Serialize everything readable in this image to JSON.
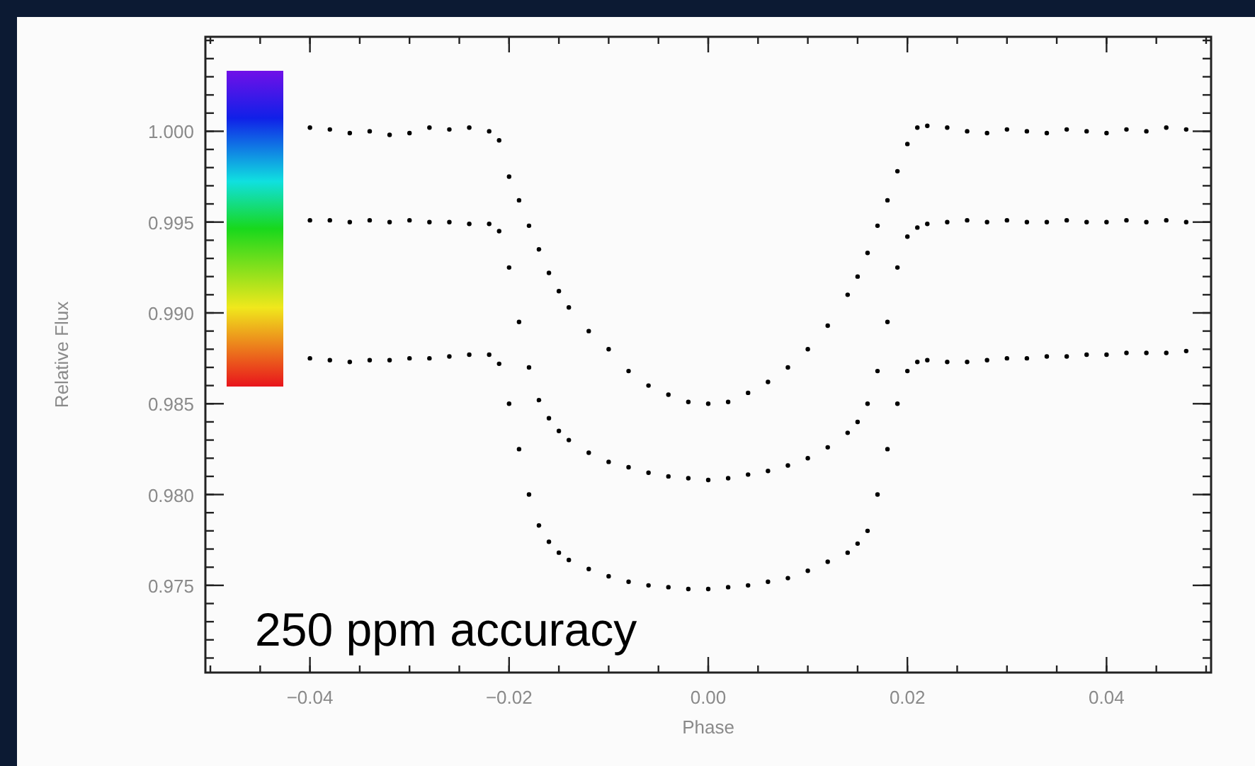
{
  "chart_data": {
    "type": "scatter",
    "xlabel": "Phase",
    "ylabel": "Relative Flux",
    "marker": "circle",
    "grid": false,
    "annotations": [
      "250 ppm accuracy"
    ],
    "xlim": [
      -0.0505,
      0.0505
    ],
    "ylim": [
      0.9702,
      1.0052
    ],
    "xticks": [
      {
        "value": -0.04,
        "label": "−0.04"
      },
      {
        "value": -0.02,
        "label": "−0.02"
      },
      {
        "value": 0,
        "label": "0.00"
      },
      {
        "value": 0.02,
        "label": "0.02"
      },
      {
        "value": 0.04,
        "label": "0.04"
      }
    ],
    "yticks": [
      {
        "value": 0.975,
        "label": "0.975"
      },
      {
        "value": 0.98,
        "label": "0.980"
      },
      {
        "value": 0.985,
        "label": "0.985"
      },
      {
        "value": 0.99,
        "label": "0.990"
      },
      {
        "value": 0.995,
        "label": "0.995"
      },
      {
        "value": 1,
        "label": "1.000"
      }
    ],
    "x": [
      -0.04,
      -0.038,
      -0.036,
      -0.034,
      -0.032,
      -0.03,
      -0.028,
      -0.026,
      -0.024,
      -0.022,
      -0.021,
      -0.02,
      -0.019,
      -0.018,
      -0.017,
      -0.016,
      -0.015,
      -0.014,
      -0.012,
      -0.01,
      -0.008,
      -0.006,
      -0.004,
      -0.002,
      0,
      0.002,
      0.004,
      0.006,
      0.008,
      0.01,
      0.012,
      0.014,
      0.015,
      0.016,
      0.017,
      0.018,
      0.019,
      0.02,
      0.021,
      0.022,
      0.024,
      0.026,
      0.028,
      0.03,
      0.032,
      0.034,
      0.036,
      0.038,
      0.04,
      0.042,
      0.044,
      0.046,
      0.048
    ],
    "series": [
      {
        "color": "#000000",
        "values": [
          1.0002,
          1.0001,
          0.9999,
          1.0,
          0.9998,
          0.9999,
          1.0002,
          1.0001,
          1.0002,
          1.0,
          0.9995,
          0.9975,
          0.9962,
          0.9948,
          0.9935,
          0.9922,
          0.9912,
          0.9903,
          0.989,
          0.988,
          0.9868,
          0.986,
          0.9855,
          0.9851,
          0.985,
          0.9851,
          0.9856,
          0.9862,
          0.987,
          0.988,
          0.9893,
          0.991,
          0.992,
          0.9933,
          0.9948,
          0.9962,
          0.9978,
          0.9993,
          1.0002,
          1.0003,
          1.0002,
          1.0,
          0.9999,
          1.0001,
          1.0,
          0.9999,
          1.0001,
          1.0,
          0.9999,
          1.0001,
          1.0,
          1.0002,
          1.0001
        ]
      },
      {
        "color": "#000000",
        "values": [
          0.9951,
          0.9951,
          0.995,
          0.9951,
          0.995,
          0.9951,
          0.995,
          0.995,
          0.9949,
          0.9949,
          0.9945,
          0.9925,
          0.9895,
          0.987,
          0.9852,
          0.9842,
          0.9835,
          0.983,
          0.9823,
          0.9818,
          0.9815,
          0.9812,
          0.981,
          0.9809,
          0.9808,
          0.9809,
          0.9811,
          0.9813,
          0.9816,
          0.982,
          0.9826,
          0.9834,
          0.984,
          0.985,
          0.9868,
          0.9895,
          0.9925,
          0.9942,
          0.9947,
          0.9949,
          0.995,
          0.9951,
          0.995,
          0.9951,
          0.995,
          0.995,
          0.9951,
          0.995,
          0.995,
          0.9951,
          0.995,
          0.9951,
          0.995
        ]
      },
      {
        "color": "#000000",
        "values": [
          0.9875,
          0.9874,
          0.9873,
          0.9874,
          0.9874,
          0.9875,
          0.9875,
          0.9876,
          0.9877,
          0.9877,
          0.9872,
          0.985,
          0.9825,
          0.98,
          0.9783,
          0.9774,
          0.9768,
          0.9764,
          0.9759,
          0.9755,
          0.9752,
          0.975,
          0.9749,
          0.9748,
          0.9748,
          0.9749,
          0.975,
          0.9752,
          0.9754,
          0.9758,
          0.9763,
          0.9768,
          0.9773,
          0.978,
          0.98,
          0.9825,
          0.985,
          0.9868,
          0.9873,
          0.9874,
          0.9873,
          0.9873,
          0.9874,
          0.9875,
          0.9875,
          0.9876,
          0.9876,
          0.9877,
          0.9877,
          0.9878,
          0.9878,
          0.9878,
          0.9879
        ]
      }
    ]
  }
}
